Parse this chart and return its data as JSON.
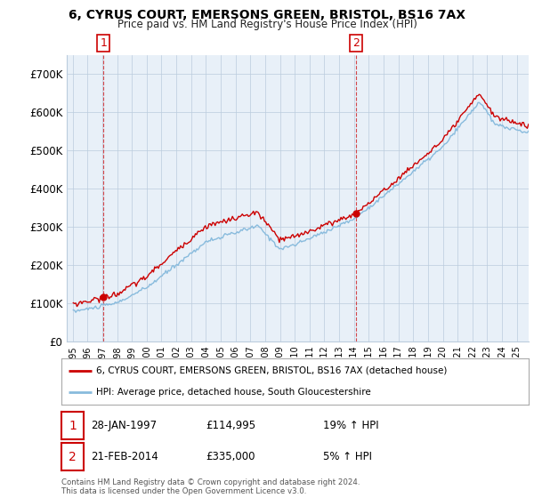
{
  "title": "6, CYRUS COURT, EMERSONS GREEN, BRISTOL, BS16 7AX",
  "subtitle": "Price paid vs. HM Land Registry's House Price Index (HPI)",
  "legend_line1": "6, CYRUS COURT, EMERSONS GREEN, BRISTOL, BS16 7AX (detached house)",
  "legend_line2": "HPI: Average price, detached house, South Gloucestershire",
  "sale1_label": "1",
  "sale1_date": "28-JAN-1997",
  "sale1_price": "£114,995",
  "sale1_hpi": "19% ↑ HPI",
  "sale2_label": "2",
  "sale2_date": "21-FEB-2014",
  "sale2_price": "£335,000",
  "sale2_hpi": "5% ↑ HPI",
  "footer": "Contains HM Land Registry data © Crown copyright and database right 2024.\nThis data is licensed under the Open Government Licence v3.0.",
  "ylim": [
    0,
    750000
  ],
  "yticks": [
    0,
    100000,
    200000,
    300000,
    400000,
    500000,
    600000,
    700000
  ],
  "ytick_labels": [
    "£0",
    "£100K",
    "£200K",
    "£300K",
    "£400K",
    "£500K",
    "£600K",
    "£700K"
  ],
  "red_color": "#cc0000",
  "blue_color": "#88bbdd",
  "bg_fill": "#e8f0f8",
  "grid_color": "#bbccdd",
  "bg_color": "#ffffff",
  "sale1_x": 1997.08,
  "sale2_x": 2014.13,
  "sale1_y": 114995,
  "sale2_y": 335000,
  "xlim_left": 1994.6,
  "xlim_right": 2025.8
}
